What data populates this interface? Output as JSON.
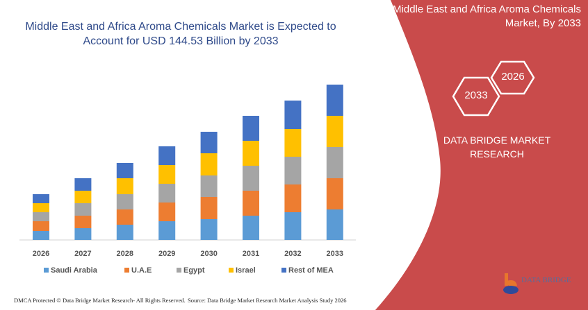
{
  "header": {
    "title_line1": "Middle East and Africa Aroma Chemicals Market is Expected to",
    "title_line2": "Account for USD 144.53 Billion by 2033"
  },
  "side_panel": {
    "title_line1": "Middle East and Africa Aroma Chemicals",
    "title_line2": "Market, By 2033",
    "hex_end_year": "2033",
    "hex_start_year": "2026",
    "brand_line1": "DATA BRIDGE MARKET",
    "brand_line2": "RESEARCH",
    "logo_text": "DATA BRIDGE",
    "panel_color": "#c94b4b"
  },
  "footer": {
    "copyright": "DMCA Protected © Data Bridge Market Research- All Rights Reserved.",
    "source": "Source: Data Bridge Market Research Market Analysis Study 2026"
  },
  "chart_data": {
    "type": "bar",
    "stacked": true,
    "title": "Middle East and Africa Aroma Chemicals Market is Expected to Account for USD 144.53 Billion by 2033",
    "categories": [
      "2026",
      "2027",
      "2028",
      "2029",
      "2030",
      "2031",
      "2032",
      "2033"
    ],
    "y_axis_shown": false,
    "grid": false,
    "legend_position": "bottom",
    "series": [
      {
        "name": "Saudi Arabia",
        "color": "#5b9bd5",
        "values": [
          13,
          17,
          22,
          27,
          30,
          35,
          40,
          44
        ]
      },
      {
        "name": "U.A.E",
        "color": "#ed7d31",
        "values": [
          14,
          18,
          22,
          27,
          32,
          36,
          40,
          45
        ]
      },
      {
        "name": "Egypt",
        "color": "#a5a5a5",
        "values": [
          13,
          18,
          22,
          27,
          31,
          36,
          40,
          45
        ]
      },
      {
        "name": "Israel",
        "color": "#ffc000",
        "values": [
          13,
          18,
          23,
          27,
          32,
          36,
          40,
          45
        ]
      },
      {
        "name": "Rest of MEA",
        "color": "#4472c4",
        "values": [
          13,
          18,
          22,
          27,
          31,
          36,
          41,
          45
        ]
      }
    ]
  }
}
